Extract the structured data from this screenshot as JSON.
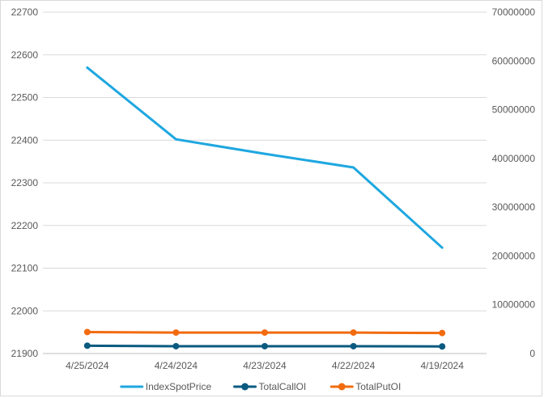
{
  "chart_data": {
    "type": "line",
    "categories": [
      "4/25/2024",
      "4/24/2024",
      "4/23/2024",
      "4/22/2024",
      "4/19/2024"
    ],
    "y_left": {
      "ylim": [
        21900,
        22700
      ],
      "ticks": [
        21900,
        22000,
        22100,
        22200,
        22300,
        22400,
        22500,
        22600,
        22700
      ]
    },
    "y_right": {
      "ylim": [
        0,
        70000000
      ],
      "ticks": [
        0,
        10000000,
        20000000,
        30000000,
        40000000,
        50000000,
        60000000,
        70000000
      ]
    },
    "series": [
      {
        "name": "IndexSpotPrice",
        "axis": "left",
        "color": "#1ea7e0",
        "markers": false,
        "values": [
          22570,
          22402,
          22368,
          22336,
          22148
        ]
      },
      {
        "name": "TotalCallOI",
        "axis": "right",
        "color": "#0a5a80",
        "markers": true,
        "values": [
          1600000,
          1500000,
          1500000,
          1500000,
          1450000
        ]
      },
      {
        "name": "TotalPutOI",
        "axis": "right",
        "color": "#f26b0f",
        "markers": true,
        "values": [
          4400000,
          4300000,
          4300000,
          4300000,
          4200000
        ]
      }
    ],
    "legend_position": "bottom",
    "grid": true
  }
}
